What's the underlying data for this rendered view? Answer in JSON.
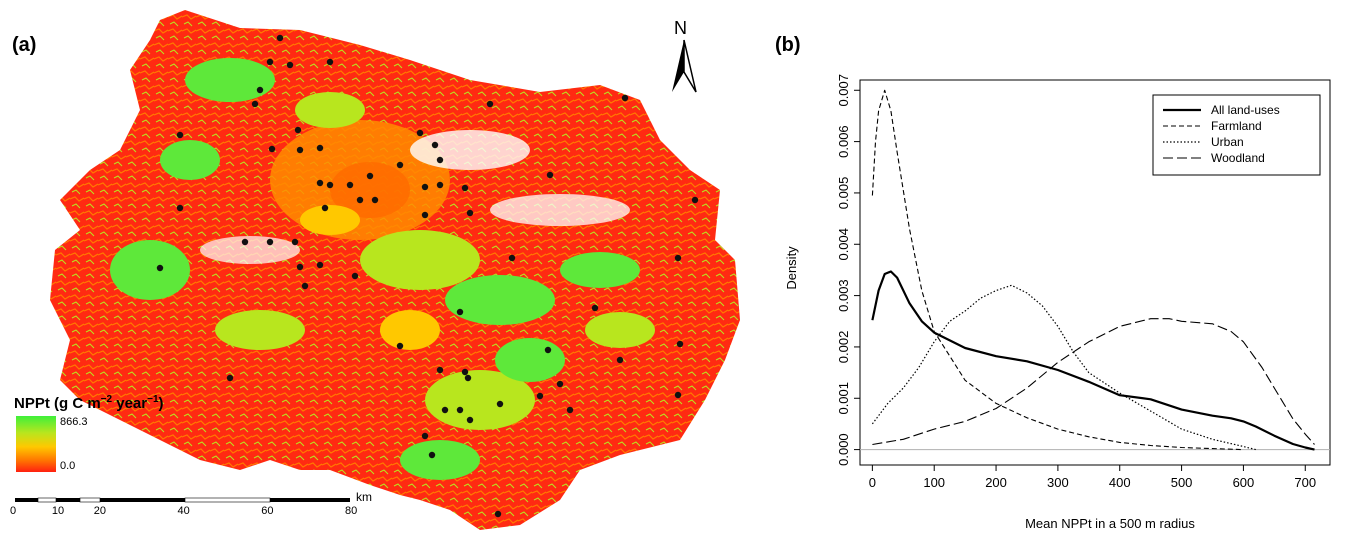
{
  "panel_a": {
    "label": "(a)",
    "north_label": "N",
    "legend": {
      "title_main": "NPPt (g C m",
      "title_exp1": "−2",
      "title_mid": " year",
      "title_exp2": "−1",
      "title_end": ")",
      "max_label": "866.3",
      "min_label": "0.0",
      "colors": [
        "#3ff03a",
        "#b8e61e",
        "#ffc800",
        "#ff7a00",
        "#ff2010"
      ]
    },
    "scalebar": {
      "unit": "km",
      "ticks": [
        0,
        10,
        20,
        40,
        60,
        80
      ]
    }
  },
  "panel_b": {
    "label": "(b)"
  },
  "chart_data": {
    "type": "line",
    "title": "",
    "xlabel": "Mean NPPt in a 500 m radius",
    "ylabel": "Density",
    "xlim": [
      0,
      720
    ],
    "ylim": [
      0,
      0.0071
    ],
    "x_ticks": [
      0,
      100,
      200,
      300,
      400,
      500,
      600,
      700
    ],
    "y_ticks": [
      0.0,
      0.001,
      0.002,
      0.003,
      0.004,
      0.005,
      0.006,
      0.007
    ],
    "y_tick_labels": [
      "0.000",
      "0.001",
      "0.002",
      "0.003",
      "0.004",
      "0.005",
      "0.006",
      "0.007"
    ],
    "legend_position": "top-right",
    "series": [
      {
        "name": "All land-uses",
        "style": "solid",
        "x": [
          0,
          10,
          20,
          30,
          40,
          60,
          80,
          100,
          150,
          200,
          250,
          300,
          350,
          400,
          450,
          500,
          550,
          580,
          600,
          620,
          650,
          680,
          700,
          715
        ],
        "y": [
          0.00252,
          0.0031,
          0.00342,
          0.00347,
          0.00335,
          0.00285,
          0.0025,
          0.00228,
          0.00198,
          0.00182,
          0.00172,
          0.00155,
          0.00132,
          0.00106,
          0.00098,
          0.00078,
          0.00066,
          0.00061,
          0.00055,
          0.00045,
          0.00027,
          0.00011,
          4e-05,
          0.0
        ]
      },
      {
        "name": "Farmland",
        "style": "dashed",
        "x": [
          0,
          5,
          10,
          20,
          30,
          40,
          60,
          80,
          100,
          150,
          200,
          250,
          300,
          350,
          400,
          450,
          500,
          550,
          600
        ],
        "y": [
          0.00495,
          0.006,
          0.0066,
          0.007,
          0.0066,
          0.0058,
          0.0043,
          0.0031,
          0.0023,
          0.00135,
          0.0009,
          0.00062,
          0.0004,
          0.00025,
          0.00014,
          8e-05,
          4e-05,
          2e-05,
          0.0
        ]
      },
      {
        "name": "Urban",
        "style": "dotted",
        "x": [
          0,
          25,
          50,
          75,
          100,
          125,
          150,
          175,
          200,
          225,
          250,
          275,
          300,
          325,
          350,
          400,
          450,
          500,
          550,
          600,
          620
        ],
        "y": [
          0.0005,
          0.0009,
          0.0012,
          0.0016,
          0.0021,
          0.0025,
          0.0027,
          0.00295,
          0.0031,
          0.0032,
          0.00305,
          0.0028,
          0.0024,
          0.0019,
          0.0015,
          0.0011,
          0.00075,
          0.0004,
          0.0002,
          6e-05,
          0.0
        ]
      },
      {
        "name": "Woodland",
        "style": "longdash",
        "x": [
          0,
          50,
          100,
          150,
          200,
          250,
          300,
          350,
          400,
          450,
          480,
          500,
          550,
          580,
          600,
          630,
          650,
          680,
          700,
          715
        ],
        "y": [
          0.0001,
          0.0002,
          0.0004,
          0.00055,
          0.0008,
          0.0012,
          0.0017,
          0.0021,
          0.0024,
          0.00255,
          0.00255,
          0.0025,
          0.00245,
          0.0023,
          0.0021,
          0.0016,
          0.0012,
          0.0006,
          0.0003,
          0.0001
        ]
      }
    ]
  }
}
